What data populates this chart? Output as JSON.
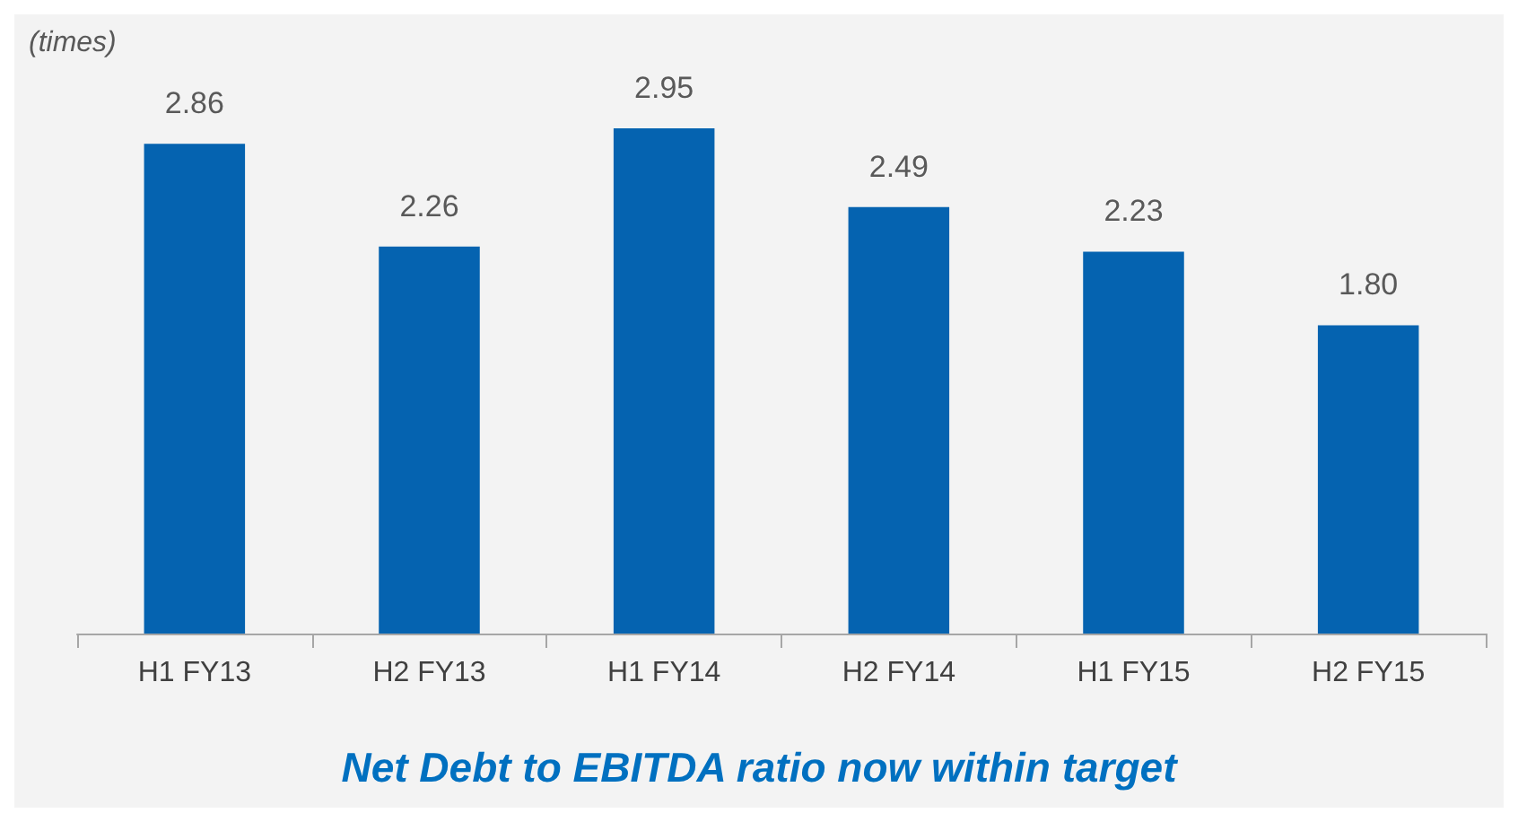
{
  "chart_data": {
    "type": "bar",
    "title": "Net Debt to EBITDA ratio now within target",
    "ylabel": "(times)",
    "categories": [
      "H1 FY13",
      "H2 FY13",
      "H1 FY14",
      "H2 FY14",
      "H1 FY15",
      "H2 FY15"
    ],
    "values": [
      2.86,
      2.26,
      2.95,
      2.49,
      2.23,
      1.8
    ],
    "value_labels": [
      "2.86",
      "2.26",
      "2.95",
      "2.49",
      "2.23",
      "1.80"
    ],
    "color": "#0563b0"
  }
}
